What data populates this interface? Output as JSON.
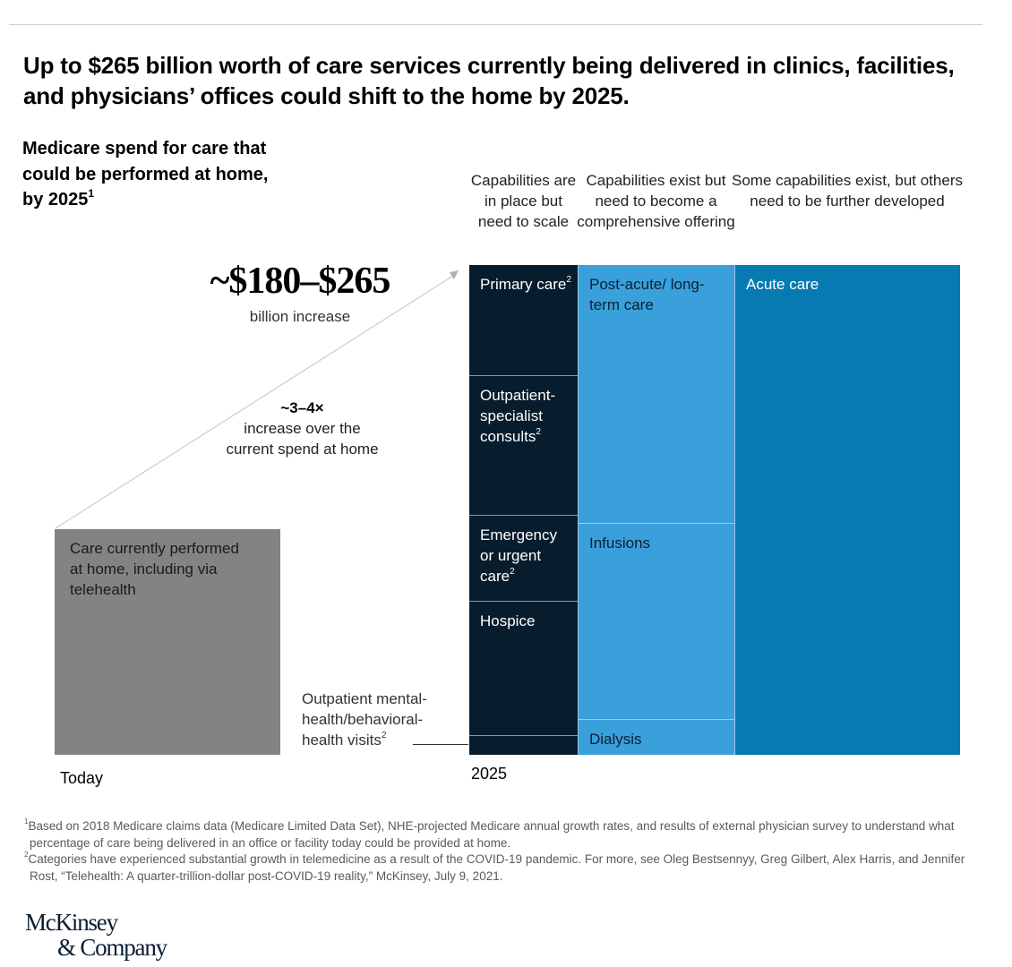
{
  "header": {
    "title": "Up to $265 billion worth of care services currently being delivered in clinics, facilities, and physicians’ offices could shift to the home by 2025.",
    "subtitle": "Medicare spend for care that could be performed at home, by 2025",
    "subtitle_footnote": "1"
  },
  "callouts": {
    "increase_amount": "~$180–$265",
    "increase_unit": "billion increase",
    "multiplier": "~3–4×",
    "multiplier_text": "increase over the current spend at home"
  },
  "chart_data": {
    "type": "marimekko",
    "title": "Medicare spend for care that could be performed at home, by 2025",
    "x_categories": [
      "Today",
      "2025"
    ],
    "today": {
      "label": "Care currently performed at home, including via telehealth",
      "relative_size": 1
    },
    "growth_multiplier_range": [
      3,
      4
    ],
    "increase_range_billion_usd": [
      180,
      265
    ],
    "columns": [
      {
        "header": "Capabilities are in place but need to scale",
        "color": "#071c2c",
        "text_color": "#ffffff",
        "width_share": 0.22,
        "segments": [
          {
            "label": "Primary care",
            "footnote": "2",
            "share": 0.225
          },
          {
            "label": "Outpatient-specialist consults",
            "footnote": "2",
            "share": 0.285
          },
          {
            "label": "Emergency or urgent care",
            "footnote": "2",
            "share": 0.175
          },
          {
            "label": "Hospice",
            "footnote": "",
            "share": 0.275
          },
          {
            "label": "Outpatient mental-health/behavioral-health visits",
            "footnote": "2",
            "share": 0.04,
            "external_label": true
          }
        ]
      },
      {
        "header": "Capabilities exist but need to become a comprehensive offering",
        "color": "#3aa0db",
        "text_color": "#0b1f33",
        "width_share": 0.32,
        "segments": [
          {
            "label": "Post-acute/ long-term care",
            "footnote": "",
            "share": 0.527
          },
          {
            "label": "Infusions",
            "footnote": "",
            "share": 0.4
          },
          {
            "label": "Dialysis",
            "footnote": "",
            "share": 0.073
          }
        ]
      },
      {
        "header": "Some capabilities exist, but others need to be further developed",
        "color": "#077ab2",
        "text_color": "#ffffff",
        "width_share": 0.46,
        "segments": [
          {
            "label": "Acute care",
            "footnote": "",
            "share": 1.0
          }
        ]
      }
    ],
    "colors": {
      "today": "#838383",
      "divider": "#9fc9e6",
      "connector": "#cccccc"
    }
  },
  "axis": {
    "today_label": "Today",
    "future_label": "2025"
  },
  "footnotes": [
    {
      "marker": "1",
      "text": "Based on 2018 Medicare claims data (Medicare Limited Data Set), NHE-projected Medicare annual growth rates, and results of external physician survey to understand what percentage of care being delivered in an office or facility today could be provided at home."
    },
    {
      "marker": "2",
      "text": "Categories have experienced substantial growth in telemedicine as a result of the COVID-19 pandemic. For more, see Oleg Bestsennyy, Greg Gilbert, Alex Harris, and Jennifer Rost, “Telehealth: A quarter-trillion-dollar post-COVID-19 reality,” McKinsey, July 9, 2021."
    }
  ],
  "brand": {
    "line1": "McKinsey",
    "line2": "& Company"
  }
}
